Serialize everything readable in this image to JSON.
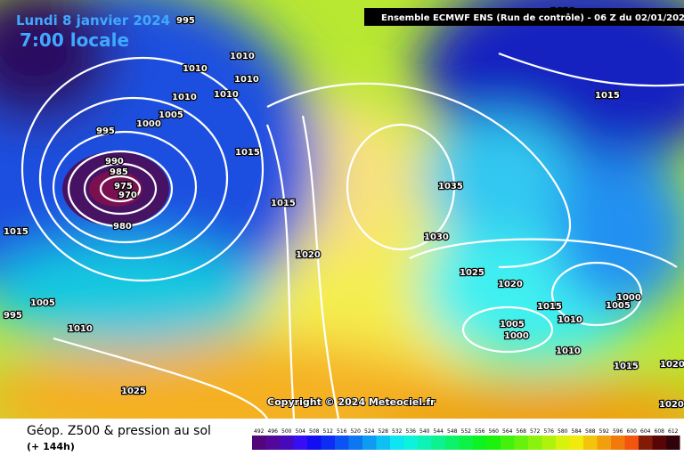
{
  "header": {
    "date": "Lundi 8 janvier 2024",
    "hour": "7:00 locale",
    "run": "Ensemble ECMWF ENS  (Run de contrôle)  - 06 Z du 02/01/2024"
  },
  "map": {
    "copyright": "Copyright © 2024 Meteociel.fr",
    "isobar_labels": [
      "995",
      "1010",
      "1010",
      "1010",
      "1010",
      "1010",
      "1005",
      "1000",
      "995",
      "990",
      "985",
      "975",
      "970",
      "980",
      "1015",
      "995",
      "1005",
      "1010",
      "1025",
      "1015",
      "1015",
      "1020",
      "1035",
      "1030",
      "1025",
      "1020",
      "1015",
      "1010",
      "1005",
      "1000",
      "1005",
      "1000",
      "1010",
      "1015",
      "1020",
      "1020",
      "1015",
      "1020"
    ]
  },
  "legend": {
    "title": "Géop. Z500 & pression au sol",
    "subtitle": "(+ 144h)",
    "scale": [
      492,
      496,
      500,
      504,
      508,
      512,
      516,
      520,
      524,
      528,
      532,
      536,
      540,
      544,
      548,
      552,
      556,
      560,
      564,
      568,
      572,
      576,
      580,
      584,
      588,
      592,
      596,
      600,
      604,
      608,
      612
    ]
  }
}
